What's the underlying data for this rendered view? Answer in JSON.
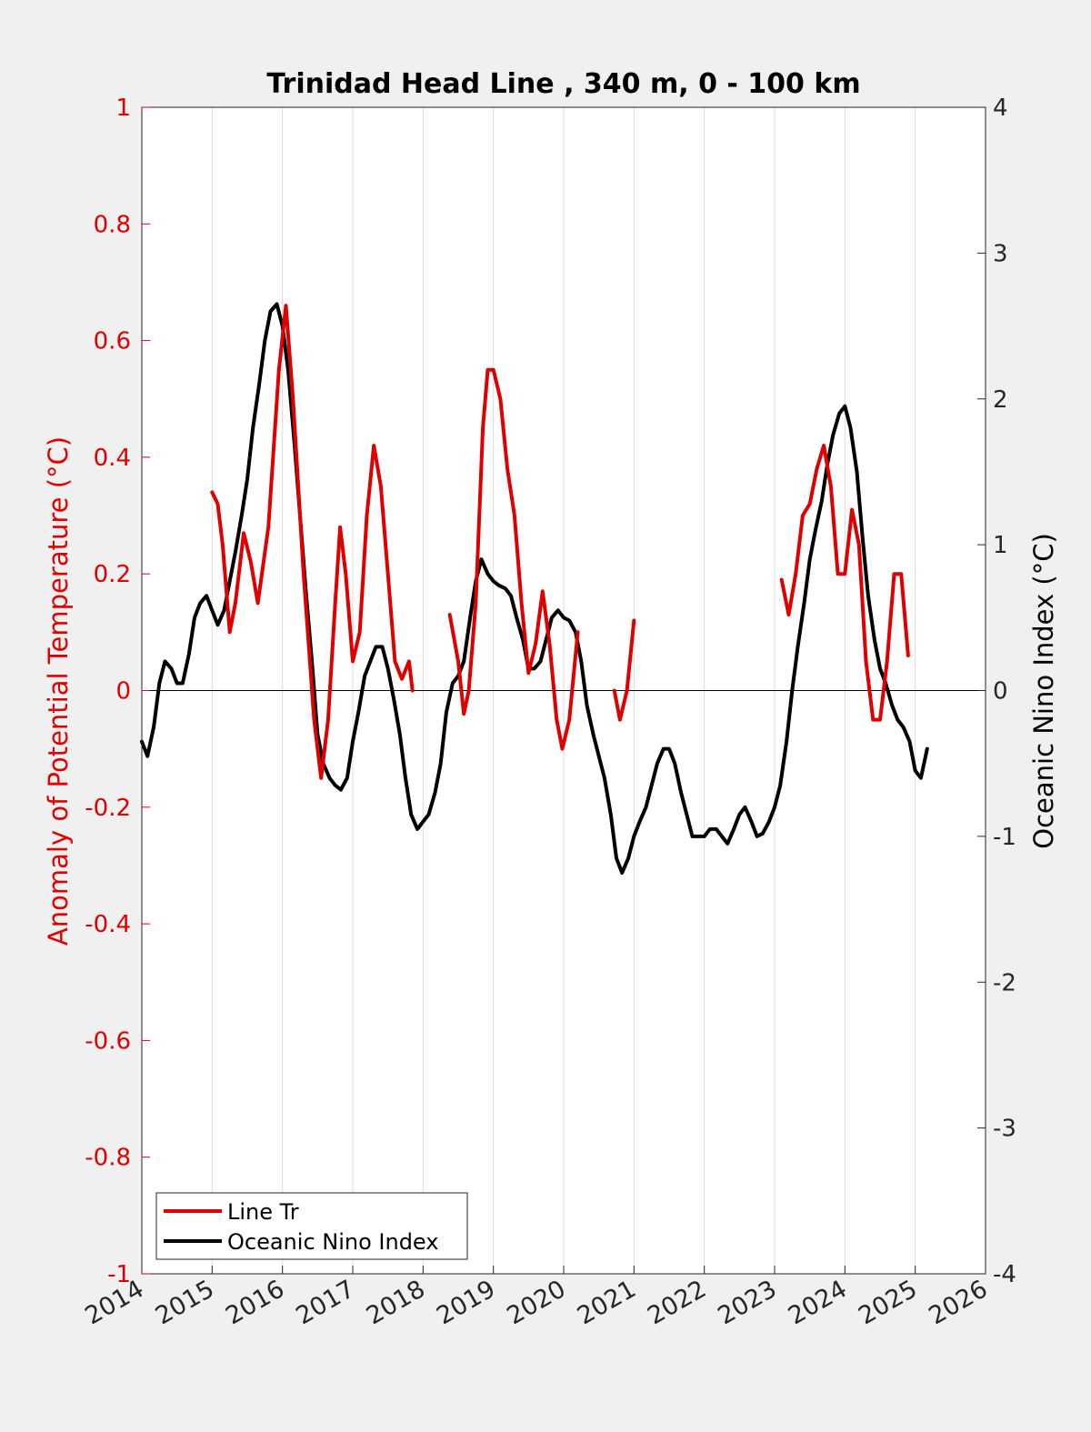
{
  "chart_data": {
    "type": "line",
    "title": "Trinidad Head Line , 340 m, 0 - 100 km",
    "xlabel": "",
    "ylabel_left": "Anomaly of Potential Temperature (°C)",
    "ylabel_right": "Oceanic Nino Index (°C)",
    "xlim": [
      2014,
      2026
    ],
    "ylim_left": [
      -1,
      1
    ],
    "ylim_right": [
      -4,
      4
    ],
    "x_ticks": [
      "2014",
      "2015",
      "2016",
      "2017",
      "2018",
      "2019",
      "2020",
      "2021",
      "2022",
      "2023",
      "2024",
      "2025",
      "2026"
    ],
    "y_ticks_left": [
      "1",
      "0.8",
      "0.6",
      "0.4",
      "0.2",
      "0",
      "-0.2",
      "-0.4",
      "-0.6",
      "-0.8",
      "-1"
    ],
    "y_ticks_right": [
      "4",
      "3",
      "2",
      "1",
      "0",
      "-1",
      "-2",
      "-3",
      "-4"
    ],
    "grid": "vertical",
    "legend_position": "bottom-left",
    "colors": {
      "left_axis": "#e00000",
      "line_tr": "#e00000",
      "oni": "#000000",
      "background": "#f0f0f0",
      "grid": "#dcdcdc"
    },
    "series": [
      {
        "name": "Line Tr",
        "axis": "left",
        "segments": [
          [
            [
              2015.0,
              0.34
            ],
            [
              2015.08,
              0.32
            ],
            [
              2015.15,
              0.25
            ],
            [
              2015.25,
              0.1
            ],
            [
              2015.33,
              0.15
            ],
            [
              2015.45,
              0.27
            ],
            [
              2015.55,
              0.22
            ],
            [
              2015.65,
              0.15
            ],
            [
              2015.8,
              0.28
            ],
            [
              2015.95,
              0.55
            ],
            [
              2016.05,
              0.66
            ],
            [
              2016.15,
              0.5
            ],
            [
              2016.3,
              0.2
            ],
            [
              2016.45,
              -0.05
            ],
            [
              2016.55,
              -0.15
            ],
            [
              2016.65,
              -0.05
            ],
            [
              2016.75,
              0.15
            ],
            [
              2016.82,
              0.28
            ],
            [
              2016.9,
              0.2
            ],
            [
              2017.0,
              0.05
            ],
            [
              2017.1,
              0.1
            ],
            [
              2017.2,
              0.3
            ],
            [
              2017.3,
              0.42
            ],
            [
              2017.4,
              0.35
            ],
            [
              2017.5,
              0.2
            ],
            [
              2017.6,
              0.05
            ],
            [
              2017.7,
              0.02
            ],
            [
              2017.8,
              0.05
            ],
            [
              2017.85,
              0.0
            ]
          ],
          [
            [
              2018.38,
              0.13
            ],
            [
              2018.5,
              0.05
            ],
            [
              2018.58,
              -0.04
            ],
            [
              2018.65,
              0.0
            ],
            [
              2018.75,
              0.15
            ],
            [
              2018.85,
              0.45
            ],
            [
              2018.92,
              0.55
            ],
            [
              2019.0,
              0.55
            ],
            [
              2019.1,
              0.5
            ],
            [
              2019.2,
              0.38
            ],
            [
              2019.3,
              0.3
            ],
            [
              2019.4,
              0.15
            ],
            [
              2019.5,
              0.03
            ],
            [
              2019.6,
              0.08
            ],
            [
              2019.7,
              0.17
            ],
            [
              2019.8,
              0.08
            ],
            [
              2019.9,
              -0.05
            ],
            [
              2019.98,
              -0.1
            ],
            [
              2020.08,
              -0.05
            ],
            [
              2020.2,
              0.1
            ]
          ],
          [
            [
              2020.72,
              0.0
            ],
            [
              2020.8,
              -0.05
            ],
            [
              2020.9,
              0.0
            ],
            [
              2021.0,
              0.12
            ]
          ],
          [
            [
              2023.1,
              0.19
            ],
            [
              2023.2,
              0.13
            ],
            [
              2023.3,
              0.2
            ],
            [
              2023.4,
              0.3
            ],
            [
              2023.5,
              0.32
            ],
            [
              2023.6,
              0.38
            ],
            [
              2023.7,
              0.42
            ],
            [
              2023.8,
              0.35
            ],
            [
              2023.9,
              0.2
            ],
            [
              2024.0,
              0.2
            ],
            [
              2024.1,
              0.31
            ],
            [
              2024.2,
              0.25
            ],
            [
              2024.3,
              0.05
            ],
            [
              2024.4,
              -0.05
            ],
            [
              2024.5,
              -0.05
            ],
            [
              2024.6,
              0.05
            ],
            [
              2024.7,
              0.2
            ],
            [
              2024.8,
              0.2
            ],
            [
              2024.9,
              0.06
            ]
          ]
        ]
      },
      {
        "name": "Oceanic Nino Index",
        "axis": "right",
        "segments": [
          [
            [
              2014.0,
              -0.35
            ],
            [
              2014.08,
              -0.45
            ],
            [
              2014.17,
              -0.25
            ],
            [
              2014.25,
              0.05
            ],
            [
              2014.33,
              0.2
            ],
            [
              2014.42,
              0.15
            ],
            [
              2014.5,
              0.05
            ],
            [
              2014.58,
              0.05
            ],
            [
              2014.67,
              0.25
            ],
            [
              2014.75,
              0.5
            ],
            [
              2014.83,
              0.6
            ],
            [
              2014.92,
              0.65
            ],
            [
              2015.0,
              0.55
            ],
            [
              2015.08,
              0.45
            ],
            [
              2015.17,
              0.55
            ],
            [
              2015.25,
              0.75
            ],
            [
              2015.33,
              0.95
            ],
            [
              2015.42,
              1.2
            ],
            [
              2015.5,
              1.45
            ],
            [
              2015.58,
              1.8
            ],
            [
              2015.67,
              2.1
            ],
            [
              2015.75,
              2.4
            ],
            [
              2015.83,
              2.6
            ],
            [
              2015.92,
              2.65
            ],
            [
              2016.0,
              2.5
            ],
            [
              2016.08,
              2.2
            ],
            [
              2016.17,
              1.7
            ],
            [
              2016.25,
              1.2
            ],
            [
              2016.33,
              0.7
            ],
            [
              2016.42,
              0.2
            ],
            [
              2016.5,
              -0.3
            ],
            [
              2016.58,
              -0.5
            ],
            [
              2016.67,
              -0.6
            ],
            [
              2016.75,
              -0.65
            ],
            [
              2016.83,
              -0.68
            ],
            [
              2016.92,
              -0.6
            ],
            [
              2017.0,
              -0.35
            ],
            [
              2017.08,
              -0.15
            ],
            [
              2017.17,
              0.1
            ],
            [
              2017.25,
              0.2
            ],
            [
              2017.33,
              0.3
            ],
            [
              2017.42,
              0.3
            ],
            [
              2017.5,
              0.15
            ],
            [
              2017.58,
              -0.05
            ],
            [
              2017.67,
              -0.3
            ],
            [
              2017.75,
              -0.6
            ],
            [
              2017.83,
              -0.85
            ],
            [
              2017.92,
              -0.95
            ],
            [
              2018.0,
              -0.9
            ],
            [
              2018.08,
              -0.85
            ],
            [
              2018.17,
              -0.7
            ],
            [
              2018.25,
              -0.5
            ],
            [
              2018.33,
              -0.15
            ],
            [
              2018.42,
              0.05
            ],
            [
              2018.5,
              0.1
            ],
            [
              2018.58,
              0.2
            ],
            [
              2018.67,
              0.5
            ],
            [
              2018.75,
              0.75
            ],
            [
              2018.83,
              0.9
            ],
            [
              2018.92,
              0.8
            ],
            [
              2019.0,
              0.75
            ],
            [
              2019.08,
              0.72
            ],
            [
              2019.17,
              0.7
            ],
            [
              2019.25,
              0.65
            ],
            [
              2019.33,
              0.5
            ],
            [
              2019.42,
              0.35
            ],
            [
              2019.5,
              0.15
            ],
            [
              2019.58,
              0.15
            ],
            [
              2019.67,
              0.2
            ],
            [
              2019.75,
              0.35
            ],
            [
              2019.83,
              0.5
            ],
            [
              2019.92,
              0.55
            ],
            [
              2020.0,
              0.5
            ],
            [
              2020.08,
              0.48
            ],
            [
              2020.17,
              0.4
            ],
            [
              2020.25,
              0.2
            ],
            [
              2020.33,
              -0.1
            ],
            [
              2020.42,
              -0.3
            ],
            [
              2020.5,
              -0.45
            ],
            [
              2020.58,
              -0.6
            ],
            [
              2020.67,
              -0.85
            ],
            [
              2020.75,
              -1.15
            ],
            [
              2020.83,
              -1.25
            ],
            [
              2020.92,
              -1.15
            ],
            [
              2021.0,
              -1.0
            ],
            [
              2021.08,
              -0.9
            ],
            [
              2021.17,
              -0.8
            ],
            [
              2021.25,
              -0.65
            ],
            [
              2021.33,
              -0.5
            ],
            [
              2021.42,
              -0.4
            ],
            [
              2021.5,
              -0.4
            ],
            [
              2021.58,
              -0.5
            ],
            [
              2021.67,
              -0.7
            ],
            [
              2021.75,
              -0.85
            ],
            [
              2021.83,
              -1.0
            ],
            [
              2021.92,
              -1.0
            ],
            [
              2022.0,
              -1.0
            ],
            [
              2022.08,
              -0.95
            ],
            [
              2022.17,
              -0.95
            ],
            [
              2022.25,
              -1.0
            ],
            [
              2022.33,
              -1.05
            ],
            [
              2022.42,
              -0.95
            ],
            [
              2022.5,
              -0.85
            ],
            [
              2022.58,
              -0.8
            ],
            [
              2022.67,
              -0.9
            ],
            [
              2022.75,
              -1.0
            ],
            [
              2022.83,
              -0.98
            ],
            [
              2022.92,
              -0.9
            ],
            [
              2023.0,
              -0.8
            ],
            [
              2023.08,
              -0.65
            ],
            [
              2023.17,
              -0.35
            ],
            [
              2023.25,
              0.0
            ],
            [
              2023.33,
              0.3
            ],
            [
              2023.42,
              0.6
            ],
            [
              2023.5,
              0.9
            ],
            [
              2023.58,
              1.1
            ],
            [
              2023.67,
              1.3
            ],
            [
              2023.75,
              1.55
            ],
            [
              2023.83,
              1.75
            ],
            [
              2023.92,
              1.9
            ],
            [
              2024.0,
              1.95
            ],
            [
              2024.08,
              1.8
            ],
            [
              2024.17,
              1.5
            ],
            [
              2024.25,
              1.05
            ],
            [
              2024.33,
              0.65
            ],
            [
              2024.42,
              0.35
            ],
            [
              2024.5,
              0.15
            ],
            [
              2024.58,
              0.05
            ],
            [
              2024.67,
              -0.1
            ],
            [
              2024.75,
              -0.2
            ],
            [
              2024.83,
              -0.25
            ],
            [
              2024.92,
              -0.35
            ],
            [
              2025.0,
              -0.55
            ],
            [
              2025.08,
              -0.6
            ],
            [
              2025.17,
              -0.4
            ]
          ]
        ]
      }
    ]
  }
}
